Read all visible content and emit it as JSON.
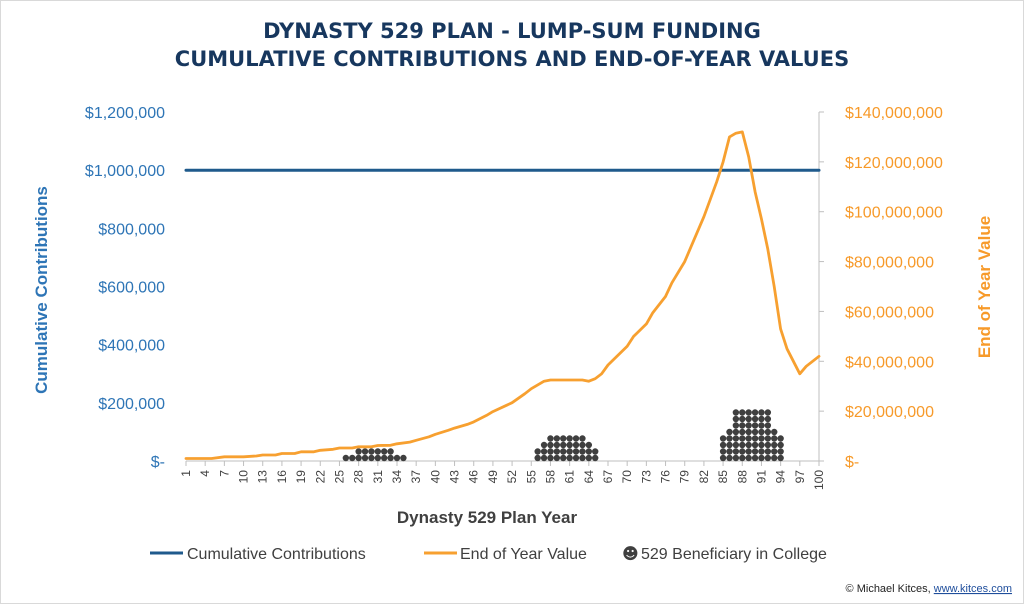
{
  "chart_data": {
    "type": "line",
    "title_line1": "DYNASTY 529 PLAN - LUMP-SUM FUNDING",
    "title_line2": "CUMULATIVE CONTRIBUTIONS AND END-OF-YEAR VALUES",
    "xlabel": "Dynasty 529 Plan Year",
    "ylabel_left": "Cumulative Contributions",
    "ylabel_right": "End of Year Value",
    "x_ticks": [
      "1",
      "4",
      "7",
      "10",
      "13",
      "16",
      "19",
      "22",
      "25",
      "28",
      "31",
      "34",
      "37",
      "40",
      "43",
      "46",
      "49",
      "52",
      "55",
      "58",
      "61",
      "64",
      "67",
      "70",
      "73",
      "76",
      "79",
      "82",
      "85",
      "88",
      "91",
      "94",
      "97",
      "100"
    ],
    "y_left_ticks": [
      "$-",
      "$200,000",
      "$400,000",
      "$600,000",
      "$800,000",
      "$1,000,000",
      "$1,200,000"
    ],
    "y_left_lim": [
      0,
      1200000
    ],
    "y_right_ticks": [
      "$-",
      "$20,000,000",
      "$40,000,000",
      "$60,000,000",
      "$80,000,000",
      "$100,000,000",
      "$120,000,000",
      "$140,000,000"
    ],
    "y_right_lim": [
      0,
      140000000
    ],
    "series": [
      {
        "name": "Cumulative Contributions",
        "axis": "left",
        "color": "#1f5a8c",
        "x": [
          1,
          100
        ],
        "values": [
          1000000,
          1000000
        ]
      },
      {
        "name": "End of Year Value",
        "axis": "right",
        "color": "#f7a030",
        "x": [
          1,
          5,
          7,
          10,
          12,
          13,
          15,
          16,
          18,
          19,
          21,
          22,
          24,
          25,
          27,
          28,
          30,
          31,
          33,
          34,
          36,
          37,
          39,
          40,
          42,
          43,
          45,
          46,
          48,
          49,
          51,
          52,
          54,
          55,
          57,
          58,
          60,
          61,
          63,
          64,
          65,
          66,
          67,
          68,
          70,
          71,
          73,
          74,
          76,
          77,
          79,
          80,
          82,
          83,
          84,
          85,
          86,
          87,
          88,
          89,
          90,
          91,
          92,
          93,
          94,
          95,
          97,
          98,
          100
        ],
        "values": [
          1000000,
          1000000,
          1700000,
          1700000,
          2000000,
          2400000,
          2400000,
          3000000,
          3000000,
          3700000,
          3700000,
          4300000,
          4700000,
          5200000,
          5200000,
          5700000,
          5700000,
          6200000,
          6300000,
          6900000,
          7600000,
          8300000,
          9700000,
          10700000,
          12300000,
          13200000,
          14700000,
          15700000,
          18300000,
          19800000,
          22200000,
          23400000,
          27000000,
          29000000,
          32000000,
          32500000,
          32500000,
          32500000,
          32500000,
          32000000,
          33000000,
          35000000,
          38500000,
          41000000,
          46000000,
          50000000,
          55000000,
          59500000,
          66000000,
          71500000,
          80000000,
          86000000,
          98000000,
          105000000,
          112000000,
          120000000,
          130000000,
          131500000,
          132000000,
          122000000,
          108000000,
          97000000,
          85000000,
          70000000,
          53000000,
          45000000,
          35000000,
          38000000,
          42000000
        ]
      }
    ],
    "college_markers": {
      "name": "529 Beneficiary in College",
      "color": "#3f3f3f",
      "groups": [
        {
          "years": [
            26,
            27,
            28,
            29,
            30,
            31,
            32,
            33,
            34,
            35
          ],
          "heights": [
            1,
            1,
            2,
            2,
            2,
            2,
            2,
            2,
            1,
            1
          ]
        },
        {
          "years": [
            56,
            57,
            58,
            59,
            60,
            61,
            62,
            63,
            64,
            65
          ],
          "heights": [
            2,
            3,
            4,
            4,
            4,
            4,
            4,
            4,
            3,
            2
          ]
        },
        {
          "years": [
            85,
            86,
            87,
            88,
            89,
            90,
            91,
            92,
            93,
            94
          ],
          "heights": [
            4,
            5,
            8,
            8,
            8,
            8,
            8,
            8,
            5,
            4
          ]
        }
      ]
    },
    "legend": {
      "position": "bottom",
      "items": [
        "Cumulative Contributions",
        "End of Year Value",
        "529 Beneficiary in College"
      ],
      "marker_glyph": "☻"
    },
    "grid": false,
    "credit_text": "© Michael Kitces, ",
    "credit_link": "www.kitces.com"
  }
}
